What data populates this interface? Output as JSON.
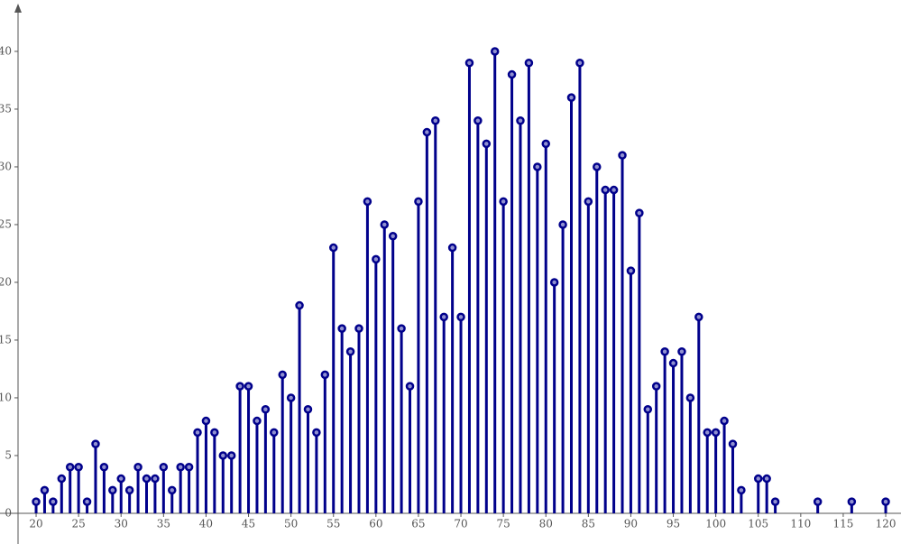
{
  "chart_data": {
    "type": "stem",
    "color": "#00008b",
    "x": [
      20,
      21,
      22,
      23,
      24,
      25,
      26,
      27,
      28,
      29,
      30,
      31,
      32,
      33,
      34,
      35,
      36,
      37,
      38,
      39,
      40,
      41,
      42,
      43,
      44,
      45,
      46,
      47,
      48,
      49,
      50,
      51,
      52,
      53,
      54,
      55,
      56,
      57,
      58,
      59,
      60,
      61,
      62,
      63,
      64,
      65,
      66,
      67,
      68,
      69,
      70,
      71,
      72,
      73,
      74,
      75,
      76,
      77,
      78,
      79,
      80,
      81,
      82,
      83,
      84,
      85,
      86,
      87,
      88,
      89,
      90,
      91,
      92,
      93,
      94,
      95,
      96,
      97,
      98,
      99,
      100,
      101,
      102,
      103,
      105,
      106,
      107,
      112,
      116,
      120
    ],
    "values": [
      1,
      2,
      1,
      3,
      4,
      4,
      1,
      6,
      4,
      2,
      3,
      2,
      4,
      3,
      3,
      4,
      2,
      4,
      4,
      7,
      8,
      7,
      5,
      5,
      11,
      11,
      8,
      9,
      7,
      12,
      10,
      18,
      9,
      7,
      12,
      23,
      16,
      14,
      16,
      27,
      22,
      25,
      24,
      16,
      11,
      27,
      33,
      34,
      17,
      23,
      17,
      39,
      34,
      32,
      40,
      27,
      38,
      34,
      39,
      30,
      32,
      20,
      25,
      36,
      39,
      27,
      30,
      28,
      28,
      31,
      21,
      26,
      9,
      11,
      14,
      13,
      14,
      10,
      17,
      7,
      7,
      8,
      6,
      2,
      3,
      3,
      1,
      1,
      1,
      1
    ],
    "xlim": [
      15.75,
      121.8
    ],
    "ylim": [
      -2.66,
      44.45
    ],
    "xticks": [
      20,
      25,
      30,
      35,
      40,
      45,
      50,
      55,
      60,
      65,
      70,
      75,
      80,
      85,
      90,
      95,
      100,
      105,
      110,
      115,
      120
    ],
    "yticks": [
      0,
      5,
      10,
      15,
      20,
      25,
      30,
      35,
      40
    ]
  }
}
